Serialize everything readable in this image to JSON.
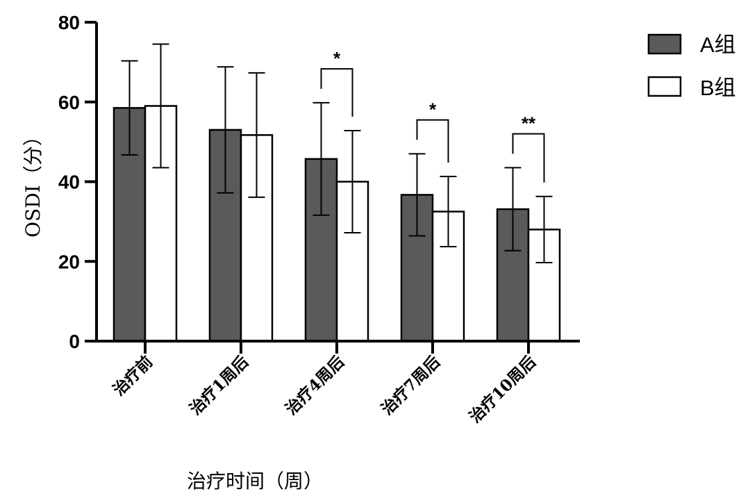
{
  "chart_data": {
    "type": "bar",
    "title": "",
    "xlabel": "治疗时间（周）",
    "ylabel": "OSDI（分）",
    "ylim": [
      0,
      80
    ],
    "yticks": [
      0,
      20,
      40,
      60,
      80
    ],
    "categories": [
      "治疗前",
      "治疗1周后",
      "治疗4周后",
      "治疗7周后",
      "治疗10周后"
    ],
    "series": [
      {
        "name": "A组",
        "color": "#5a5a5a",
        "values": [
          58.5,
          53.0,
          45.7,
          36.7,
          33.1
        ],
        "errors": [
          11.8,
          15.8,
          14.1,
          10.3,
          10.4
        ]
      },
      {
        "name": "B组",
        "color": "#ffffff",
        "values": [
          59.0,
          51.7,
          40.0,
          32.5,
          28.0
        ],
        "errors": [
          15.5,
          15.6,
          12.8,
          8.8,
          8.3
        ]
      }
    ],
    "significance": [
      {
        "category": "治疗4周后",
        "label": "*"
      },
      {
        "category": "治疗7周后",
        "label": "*"
      },
      {
        "category": "治疗10周后",
        "label": "**"
      }
    ],
    "legend_position": "top-right"
  }
}
